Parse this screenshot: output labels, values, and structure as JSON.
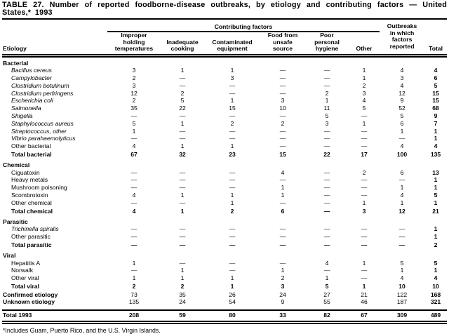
{
  "title": "TABLE 27. Number of reported foodborne-disease outbreaks, by etiology and contributing factors — United States,* 1993",
  "footnote": "*Includes Guam, Puerto Rico, and the U.S. Virgin Islands.",
  "table": {
    "etiology_header": "Etiology",
    "contributing_factors_header": "Contributing factors",
    "outbreaks_header": "Outbreaks\nin which\nfactors\nreported",
    "total_header": "Total",
    "factor_columns": [
      "Improper\nholding\ntemperatures",
      "Inadequate\ncooking",
      "Contaminated\nequipment",
      "Food from\nunsafe\nsource",
      "Poor\npersonal\nhygiene",
      "Other"
    ],
    "sections": [
      {
        "name": "Bacterial",
        "rows": [
          {
            "label": "Bacillus cereus",
            "italic": true,
            "values": [
              "3",
              "1",
              "1",
              "—",
              "—",
              "1",
              "4",
              "4"
            ]
          },
          {
            "label": "Campylobacter",
            "italic": true,
            "values": [
              "2",
              "—",
              "3",
              "—",
              "—",
              "1",
              "3",
              "6"
            ]
          },
          {
            "label": "Clostridium botulinum",
            "italic": true,
            "values": [
              "3",
              "—",
              "—",
              "—",
              "—",
              "2",
              "4",
              "5"
            ]
          },
          {
            "label": "Clostridium perfringens",
            "italic": true,
            "values": [
              "12",
              "2",
              "—",
              "—",
              "2",
              "3",
              "12",
              "15"
            ]
          },
          {
            "label": "Escherichia coli",
            "italic": true,
            "values": [
              "2",
              "5",
              "1",
              "3",
              "1",
              "4",
              "9",
              "15"
            ]
          },
          {
            "label": "Salmonella",
            "italic": true,
            "values": [
              "35",
              "22",
              "15",
              "10",
              "11",
              "5",
              "52",
              "68"
            ]
          },
          {
            "label": "Shigella",
            "italic": true,
            "values": [
              "—",
              "—",
              "—",
              "—",
              "5",
              "—",
              "5",
              "9"
            ]
          },
          {
            "label": "Staphylococcus aureus",
            "italic": true,
            "values": [
              "5",
              "1",
              "2",
              "2",
              "3",
              "1",
              "6",
              "7"
            ]
          },
          {
            "label": "Streptococcus, other",
            "italic": true,
            "values": [
              "1",
              "—",
              "—",
              "—",
              "—",
              "—",
              "1",
              "1"
            ]
          },
          {
            "label": "Vibrio parahaemolyticus",
            "italic": true,
            "values": [
              "—",
              "—",
              "—",
              "—",
              "—",
              "—",
              "—",
              "1"
            ]
          },
          {
            "label": "Other bacterial",
            "italic": false,
            "values": [
              "4",
              "1",
              "1",
              "—",
              "—",
              "—",
              "4",
              "4"
            ]
          }
        ],
        "total": {
          "label": "Total bacterial",
          "values": [
            "67",
            "32",
            "23",
            "15",
            "22",
            "17",
            "100",
            "135"
          ]
        }
      },
      {
        "name": "Chemical",
        "rows": [
          {
            "label": "Ciguatoxin",
            "italic": false,
            "values": [
              "—",
              "—",
              "—",
              "4",
              "—",
              "2",
              "6",
              "13"
            ]
          },
          {
            "label": "Heavy metals",
            "italic": false,
            "values": [
              "—",
              "—",
              "—",
              "—",
              "—",
              "—",
              "—",
              "1"
            ]
          },
          {
            "label": "Mushroom poisoning",
            "italic": false,
            "values": [
              "—",
              "—",
              "—",
              "1",
              "—",
              "—",
              "1",
              "1"
            ]
          },
          {
            "label": "Scombrotoxin",
            "italic": false,
            "values": [
              "4",
              "1",
              "1",
              "1",
              "—",
              "—",
              "4",
              "5"
            ]
          },
          {
            "label": "Other chemical",
            "italic": false,
            "values": [
              "—",
              "—",
              "1",
              "—",
              "—",
              "1",
              "1",
              "1"
            ]
          }
        ],
        "total": {
          "label": "Total chemical",
          "values": [
            "4",
            "1",
            "2",
            "6",
            "—",
            "3",
            "12",
            "21"
          ]
        }
      },
      {
        "name": "Parasitic",
        "rows": [
          {
            "label": "Trichinella spiralis",
            "italic": true,
            "values": [
              "—",
              "—",
              "—",
              "—",
              "—",
              "—",
              "—",
              "1"
            ]
          },
          {
            "label": "Other parasitic",
            "italic": false,
            "values": [
              "—",
              "—",
              "—",
              "—",
              "—",
              "—",
              "—",
              "1"
            ]
          }
        ],
        "total": {
          "label": "Total parasitic",
          "values": [
            "—",
            "—",
            "—",
            "—",
            "—",
            "—",
            "—",
            "2"
          ]
        }
      },
      {
        "name": "Viral",
        "rows": [
          {
            "label": "Hepatitis A",
            "italic": false,
            "values": [
              "1",
              "—",
              "—",
              "—",
              "4",
              "1",
              "5",
              "5"
            ]
          },
          {
            "label": "Norwalk",
            "italic": false,
            "values": [
              "—",
              "1",
              "—",
              "1",
              "—",
              "—",
              "1",
              "1"
            ]
          },
          {
            "label": "Other viral",
            "italic": false,
            "values": [
              "1",
              "1",
              "1",
              "2",
              "1",
              "—",
              "4",
              "4"
            ]
          }
        ],
        "total": {
          "label": "Total viral",
          "values": [
            "2",
            "2",
            "1",
            "3",
            "5",
            "1",
            "10",
            "10"
          ]
        }
      }
    ],
    "summary_rows": [
      {
        "label": "Confirmed etiology",
        "values": [
          "73",
          "35",
          "26",
          "24",
          "27",
          "21",
          "122",
          "168"
        ]
      },
      {
        "label": "Unknown etiology",
        "values": [
          "135",
          "24",
          "54",
          "9",
          "55",
          "46",
          "187",
          "321"
        ]
      }
    ],
    "grand_total": {
      "label": "Total 1993",
      "values": [
        "208",
        "59",
        "80",
        "33",
        "82",
        "67",
        "309",
        "489"
      ]
    }
  }
}
